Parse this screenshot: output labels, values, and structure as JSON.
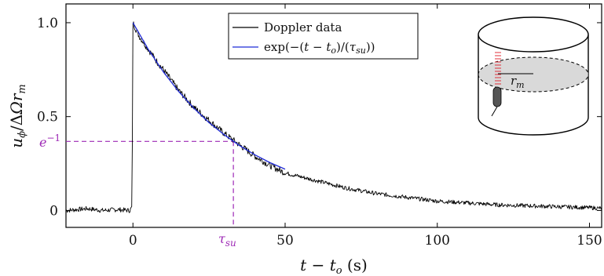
{
  "chart_data": {
    "type": "line",
    "xlabel": "t − t_o (s)",
    "ylabel": "u_φ / ΔΩ r_m",
    "xlim": [
      -22,
      154
    ],
    "ylim": [
      -0.09,
      1.1
    ],
    "xticks": [
      0,
      50,
      100,
      150
    ],
    "xtick_labels": [
      "0",
      "50",
      "100",
      "150"
    ],
    "yticks": [
      0,
      0.5,
      1.0
    ],
    "ytick_labels": [
      "0",
      "0.5",
      "1.0"
    ],
    "grid": false,
    "legend_position": "top-center",
    "series": [
      {
        "name": "Doppler data",
        "color": "#000000",
        "x": [
          -22,
          -15,
          -10,
          -5,
          -1,
          -0.3,
          0,
          2,
          5,
          8,
          10,
          15,
          20,
          25,
          30,
          35,
          40,
          45,
          50,
          60,
          70,
          80,
          90,
          100,
          110,
          120,
          130,
          140,
          150,
          154
        ],
        "y": [
          0,
          0.01,
          0,
          0.005,
          0,
          0.02,
          1.0,
          0.93,
          0.86,
          0.79,
          0.75,
          0.64,
          0.55,
          0.48,
          0.41,
          0.35,
          0.29,
          0.24,
          0.2,
          0.16,
          0.12,
          0.09,
          0.07,
          0.05,
          0.04,
          0.03,
          0.025,
          0.02,
          0.015,
          0.012
        ]
      },
      {
        "name": "exp(−(t − t_o)/(τ_su))",
        "color": "#1f2ad6",
        "x": [
          0,
          5,
          10,
          15,
          20,
          25,
          30,
          35,
          40,
          45,
          50
        ],
        "y": [
          1.0,
          0.859,
          0.738,
          0.634,
          0.545,
          0.468,
          0.403,
          0.346,
          0.297,
          0.255,
          0.22
        ]
      }
    ],
    "annotations": [
      {
        "text": "e^-1",
        "display": "e",
        "sup": "−1",
        "x": 33,
        "y": 0.368,
        "color": "#9d28b5"
      },
      {
        "text": "τ_su",
        "display": "τ",
        "sub": "su",
        "x": 33,
        "color": "#9d28b5"
      }
    ],
    "inset": {
      "label": "r_m",
      "label_main": "r",
      "label_sub": "m"
    }
  }
}
